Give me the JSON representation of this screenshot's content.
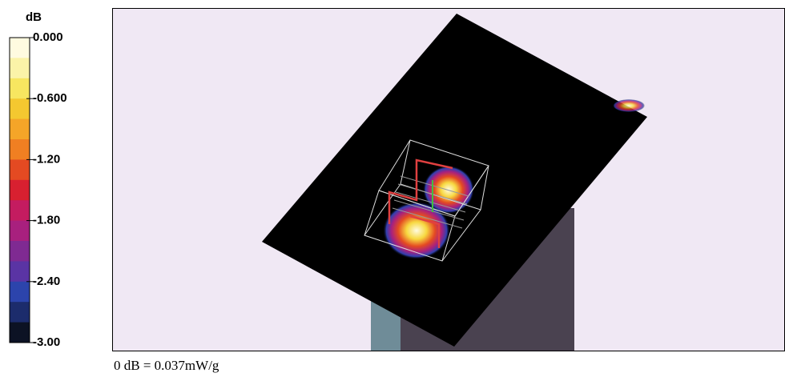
{
  "colorbar": {
    "unit": "dB",
    "range": [
      -3,
      0
    ],
    "ticks": [
      {
        "value": 0,
        "label": "0.000"
      },
      {
        "value": -0.6,
        "label": "-0.600"
      },
      {
        "value": -1.2,
        "label": "-1.20"
      },
      {
        "value": -1.8,
        "label": "-1.80"
      },
      {
        "value": -2.4,
        "label": "-2.40"
      },
      {
        "value": -3,
        "label": "-3.00"
      }
    ],
    "colors": [
      "#fffbe0",
      "#fbf3a8",
      "#f7e660",
      "#f4c830",
      "#f5a528",
      "#f07f22",
      "#e44a22",
      "#d82030",
      "#c41c60",
      "#a8207e",
      "#7f2a92",
      "#5a34a4",
      "#2c44ac",
      "#1c2c6c",
      "#0c1224"
    ]
  },
  "caption": "0 dB = 0.037mW/g"
}
